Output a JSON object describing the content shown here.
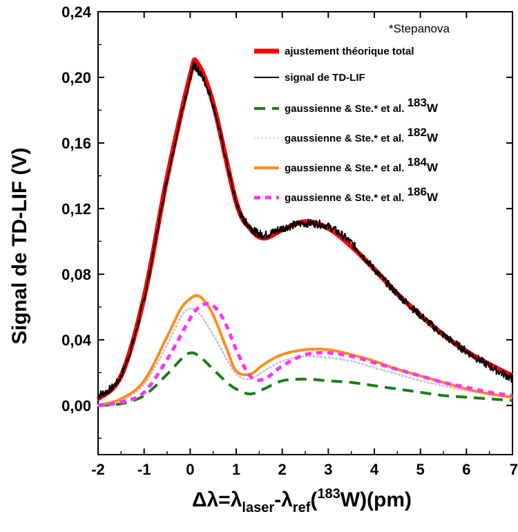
{
  "chart_data": {
    "type": "line",
    "note": "*Stepanova",
    "ylabel": "Signal de TD-LIF (V)",
    "xlabel": {
      "parts": [
        "Δλ=λ",
        "laser",
        "-λ",
        "ref",
        "(",
        "183",
        "W)(pm)"
      ]
    },
    "xlim": [
      -2,
      7
    ],
    "ylim": [
      -0.03,
      0.24
    ],
    "xticks": [
      -2,
      -1,
      0,
      1,
      2,
      3,
      4,
      5,
      6,
      7
    ],
    "xtick_labels": [
      "-2",
      "-1",
      "0",
      "1",
      "2",
      "3",
      "4",
      "5",
      "6",
      "7"
    ],
    "yticks": [
      0.0,
      0.04,
      0.08,
      0.12,
      0.16,
      0.2,
      0.24
    ],
    "ytick_labels": [
      "0,00",
      "0,04",
      "0,08",
      "0,12",
      "0,16",
      "0,20",
      "0,24"
    ],
    "series": [
      {
        "key": "total",
        "name": "ajustement théorique total",
        "color": "#ff0000",
        "style": "solid-thick",
        "x": [
          -2.0,
          -1.5,
          -1.0,
          -0.5,
          0.0,
          0.15,
          0.5,
          1.0,
          1.3,
          1.6,
          2.0,
          2.5,
          3.0,
          3.5,
          4.0,
          4.5,
          5.0,
          5.5,
          6.0,
          6.5,
          7.0
        ],
        "y": [
          0.004,
          0.018,
          0.066,
          0.139,
          0.201,
          0.209,
          0.184,
          0.124,
          0.108,
          0.102,
          0.107,
          0.112,
          0.108,
          0.097,
          0.083,
          0.068,
          0.055,
          0.043,
          0.033,
          0.025,
          0.018
        ]
      },
      {
        "key": "signal",
        "name": "signal de TD-LIF",
        "color": "#000000",
        "style": "solid-noisy",
        "x": [
          -2.0,
          -1.5,
          -1.0,
          -0.5,
          0.0,
          0.15,
          0.5,
          1.0,
          1.3,
          1.6,
          2.0,
          2.5,
          3.0,
          3.5,
          4.0,
          4.5,
          5.0,
          5.5,
          6.0,
          6.5,
          7.0
        ],
        "y": [
          0.006,
          0.018,
          0.065,
          0.138,
          0.199,
          0.205,
          0.183,
          0.124,
          0.109,
          0.104,
          0.108,
          0.111,
          0.109,
          0.099,
          0.083,
          0.068,
          0.055,
          0.043,
          0.033,
          0.024,
          0.016
        ]
      },
      {
        "key": "w183",
        "name": "gaussienne & Ste.* et al.",
        "isotope": "183",
        "element": "W",
        "color": "#1a7d1a",
        "style": "dash",
        "x": [
          -2.0,
          -1.5,
          -1.0,
          -0.5,
          -0.2,
          0.0,
          0.2,
          0.5,
          0.8,
          1.0,
          1.3,
          1.6,
          2.0,
          2.5,
          3.0,
          3.5,
          4.0,
          4.5,
          5.0,
          5.5,
          6.0,
          6.5,
          7.0
        ],
        "y": [
          0.0,
          0.001,
          0.006,
          0.019,
          0.028,
          0.032,
          0.03,
          0.022,
          0.014,
          0.01,
          0.007,
          0.01,
          0.015,
          0.016,
          0.015,
          0.014,
          0.012,
          0.01,
          0.008,
          0.006,
          0.005,
          0.004,
          0.003
        ]
      },
      {
        "key": "w182",
        "name": "gaussienne & Ste.* et al.",
        "isotope": "182",
        "element": "W",
        "color": "#c8c8dc",
        "style": "dot",
        "x": [
          -2.0,
          -1.5,
          -1.0,
          -0.5,
          -0.2,
          0.0,
          0.2,
          0.5,
          0.8,
          1.0,
          1.3,
          1.6,
          2.0,
          2.5,
          3.0,
          3.5,
          4.0,
          4.5,
          5.0,
          5.5,
          6.0,
          6.5,
          7.0
        ],
        "y": [
          0.0,
          0.003,
          0.013,
          0.037,
          0.054,
          0.059,
          0.056,
          0.043,
          0.028,
          0.019,
          0.016,
          0.021,
          0.027,
          0.03,
          0.029,
          0.027,
          0.023,
          0.019,
          0.015,
          0.012,
          0.009,
          0.007,
          0.005
        ]
      },
      {
        "key": "w184",
        "name": "gaussienne & Ste.* et al.",
        "isotope": "184",
        "element": "W",
        "color": "#ff8c1a",
        "style": "solid",
        "x": [
          -2.0,
          -1.5,
          -1.0,
          -0.5,
          -0.2,
          0.0,
          0.15,
          0.3,
          0.5,
          0.8,
          1.0,
          1.3,
          1.6,
          2.0,
          2.5,
          3.0,
          3.5,
          4.0,
          4.5,
          5.0,
          5.5,
          6.0,
          6.5,
          7.0
        ],
        "y": [
          0.0,
          0.004,
          0.015,
          0.042,
          0.059,
          0.065,
          0.067,
          0.064,
          0.055,
          0.034,
          0.021,
          0.019,
          0.025,
          0.031,
          0.034,
          0.034,
          0.031,
          0.027,
          0.022,
          0.018,
          0.014,
          0.01,
          0.007,
          0.005
        ]
      },
      {
        "key": "w186",
        "name": "gaussienne & Ste.* et al.",
        "isotope": "186",
        "element": "W",
        "color": "#ff33ff",
        "style": "dash-thick",
        "x": [
          -2.0,
          -1.5,
          -1.0,
          -0.5,
          0.0,
          0.2,
          0.4,
          0.6,
          0.8,
          1.0,
          1.3,
          1.6,
          2.0,
          2.5,
          3.0,
          3.5,
          4.0,
          4.5,
          5.0,
          5.5,
          6.0,
          6.5,
          7.0
        ],
        "y": [
          0.0,
          0.002,
          0.008,
          0.028,
          0.053,
          0.06,
          0.062,
          0.058,
          0.048,
          0.034,
          0.018,
          0.016,
          0.024,
          0.031,
          0.032,
          0.03,
          0.026,
          0.022,
          0.018,
          0.014,
          0.011,
          0.008,
          0.006
        ]
      }
    ],
    "legend_position": "top-right",
    "grid": false
  }
}
